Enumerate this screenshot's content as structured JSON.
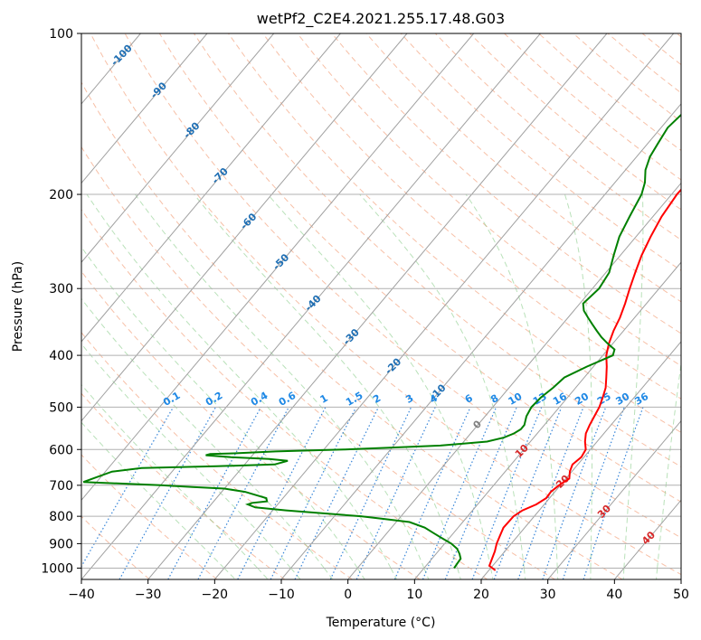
{
  "chart_data": {
    "type": "line",
    "title": "wetPf2_C2E4.2021.255.17.48.G03",
    "xlabel": "Temperature (°C)",
    "ylabel": "Pressure (hPa)",
    "xlim": [
      -40,
      50
    ],
    "ylim": [
      1050,
      100
    ],
    "y_scale": "log",
    "x_ticks": [
      -40,
      -30,
      -20,
      -10,
      0,
      10,
      20,
      30,
      40,
      50
    ],
    "y_ticks": [
      100,
      200,
      300,
      400,
      500,
      600,
      700,
      800,
      900,
      1000
    ],
    "grid": true,
    "series": [
      {
        "color": "#ff0000",
        "pressure": [
          1010,
          990,
          960,
          930,
          900,
          870,
          840,
          800,
          780,
          760,
          740,
          720,
          700,
          680,
          660,
          640,
          620,
          600,
          580,
          560,
          540,
          520,
          500,
          480,
          460,
          440,
          420,
          400,
          380,
          360,
          340,
          320,
          300,
          280,
          260,
          240,
          220,
          200,
          190,
          180,
          170,
          160,
          150,
          140,
          130,
          120,
          110,
          100
        ],
        "temperature": [
          21,
          19.5,
          19,
          18.5,
          17.8,
          17.3,
          16.8,
          16.9,
          17.5,
          18.8,
          19.5,
          19.4,
          19.8,
          20.5,
          19.7,
          19.2,
          19.6,
          19.3,
          18.2,
          17.3,
          16.8,
          16.4,
          16.0,
          15.3,
          14.5,
          13.3,
          12.0,
          10.5,
          9.4,
          8.5,
          7.8,
          6.8,
          5.6,
          4.4,
          3.2,
          2.2,
          1.3,
          0.8,
          0.9,
          1.1,
          1.3,
          1.5,
          2.5,
          4.0,
          6.0,
          9.0,
          11.5,
          15.5
        ]
      },
      {
        "color": "#008000",
        "pressure": [
          1000,
          980,
          960,
          940,
          920,
          900,
          880,
          860,
          840,
          820,
          810,
          800,
          790,
          780,
          770,
          760,
          755,
          750,
          740,
          730,
          720,
          710,
          705,
          700,
          690,
          660,
          650,
          645,
          640,
          630,
          625,
          620,
          615,
          612,
          610,
          605,
          600,
          595,
          590,
          580,
          570,
          560,
          550,
          540,
          520,
          500,
          480,
          470,
          460,
          440,
          420,
          400,
          390,
          380,
          370,
          360,
          350,
          340,
          330,
          320,
          300,
          280,
          260,
          240,
          220,
          200,
          190,
          180,
          170,
          160,
          150,
          140,
          130,
          120,
          110,
          100
        ],
        "temperature": [
          14.5,
          14.4,
          14.3,
          13.5,
          12.5,
          11.0,
          9.0,
          7.0,
          5.0,
          2.0,
          -2.0,
          -6.0,
          -12.0,
          -18.0,
          -23.0,
          -24.5,
          -24.0,
          -22.0,
          -22.5,
          -24.5,
          -26.5,
          -30.0,
          -35.0,
          -40.0,
          -52.0,
          -49.0,
          -45.0,
          -34.0,
          -25.5,
          -24.0,
          -27.0,
          -33.0,
          -37.0,
          -36.5,
          -33.0,
          -27.0,
          -17.0,
          -10.0,
          -3.0,
          3.5,
          5.5,
          6.5,
          7.0,
          7.0,
          6.2,
          5.8,
          6.0,
          6.3,
          6.6,
          7.0,
          9.0,
          11.5,
          11.0,
          9.2,
          7.5,
          6.0,
          4.5,
          3.0,
          1.5,
          0.5,
          1.0,
          0.5,
          -1.0,
          -2.5,
          -3.5,
          -4.5,
          -5.5,
          -7.0,
          -8.0,
          -8.5,
          -9.0,
          -8.5,
          -7.0,
          -4.5,
          -0.5,
          2.0
        ]
      }
    ],
    "isotherm_labels": [
      "-100",
      "-90",
      "-80",
      "-70",
      "-60",
      "-50",
      "-40",
      "-30",
      "-20",
      "-10",
      "0",
      "10",
      "20",
      "30",
      "40"
    ],
    "mixing_ratio_labels": [
      "0.1",
      "0.2",
      "0.4",
      "0.6",
      "1",
      "1.5",
      "2",
      "3",
      "4",
      "6",
      "8",
      "10",
      "13",
      "16",
      "20",
      "25",
      "30",
      "36"
    ]
  }
}
